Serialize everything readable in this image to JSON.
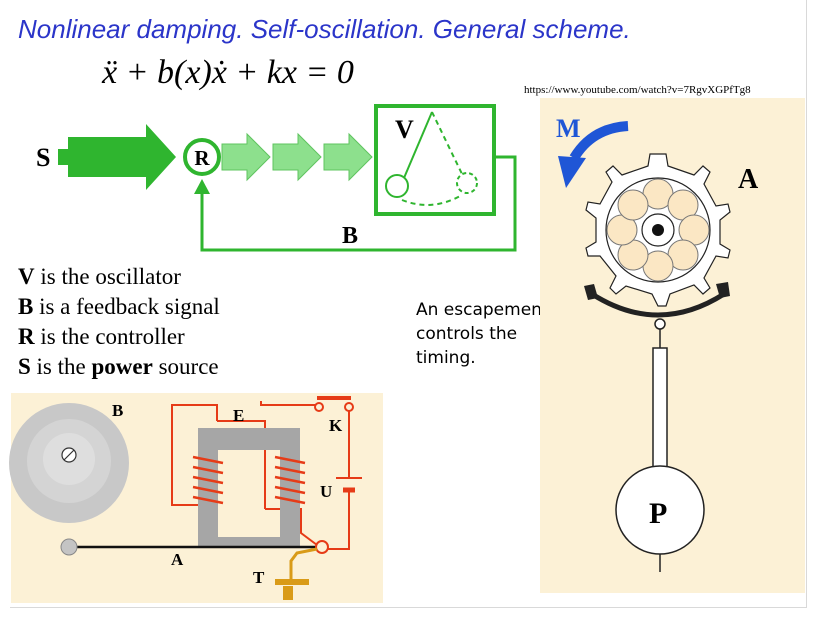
{
  "slide": {
    "title": "Nonlinear damping. Self-oscillation. General scheme.",
    "equation": "ẍ + b(x)ẋ + kx = 0",
    "source_url": "https://www.youtube.com/watch?v=7RgvXGPfTg8"
  },
  "scheme": {
    "source_label": "S",
    "controller_label": "R",
    "oscillator_label": "V",
    "feedback_label": "B"
  },
  "legend": [
    {
      "key": "V",
      "pre": " is the oscillator",
      "bold_word": "",
      "post": ""
    },
    {
      "key": "B",
      "pre": " is a feedback signal",
      "bold_word": "",
      "post": ""
    },
    {
      "key": "R",
      "pre": " is the controller",
      "bold_word": "",
      "post": ""
    },
    {
      "key": "S",
      "pre": " is the ",
      "bold_word": "power",
      "post": " source"
    }
  ],
  "bell": {
    "bell_label": "B",
    "electromagnet_label": "E",
    "key_label": "K",
    "battery_label": "U",
    "armature_label": "A",
    "contact_label": "T"
  },
  "escapement": {
    "motion_label": "M",
    "wheel_label": "A",
    "pendulum_label": "P",
    "note": "An escapement controls the timing."
  },
  "colors": {
    "title": "#2b35c9",
    "arrow_green": "#2fb52f",
    "arrow_light": "#8de08d",
    "panel_bg": "#fcf1d6",
    "wire_red": "#e63b17",
    "magnet_gray": "#a6a6a6",
    "motion_arrow": "#1f56d6"
  }
}
